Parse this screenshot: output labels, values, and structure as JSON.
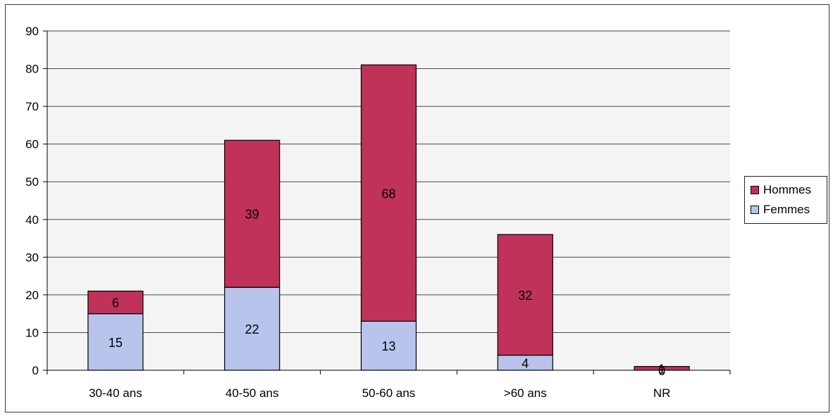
{
  "chart_data": {
    "type": "bar",
    "stacked": true,
    "categories": [
      "30-40 ans",
      "40-50 ans",
      "50-60 ans",
      ">60 ans",
      "NR"
    ],
    "series": [
      {
        "name": "Femmes",
        "values": [
          15,
          22,
          13,
          4,
          0
        ],
        "color": "#b8c4ec"
      },
      {
        "name": "Hommes",
        "values": [
          6,
          39,
          68,
          32,
          1
        ],
        "color": "#c0325a"
      }
    ],
    "ylim": [
      0,
      90
    ],
    "yticks": [
      0,
      10,
      20,
      30,
      40,
      50,
      60,
      70,
      80,
      90
    ],
    "grid": true,
    "legend_position": "right",
    "legend": [
      {
        "label": "Hommes",
        "color": "#c0325a"
      },
      {
        "label": "Femmes",
        "color": "#b8c4ec"
      }
    ],
    "title": "",
    "xlabel": "",
    "ylabel": ""
  }
}
